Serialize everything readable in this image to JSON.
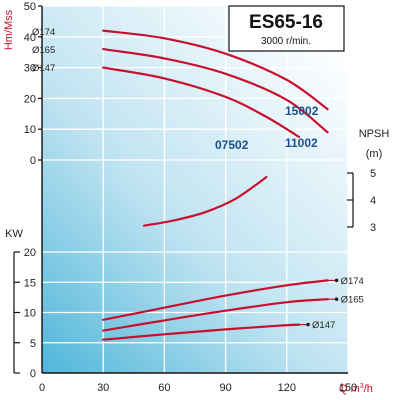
{
  "chart_data": {
    "type": "line",
    "title": "ES65-16",
    "subtitle": "3000 r/min.",
    "x_axis": {
      "label_main": "Q m",
      "label_sup": "3",
      "label_tail": "/h",
      "ticks": [
        "0",
        "30",
        "60",
        "90",
        "120",
        "150"
      ],
      "range": [
        0,
        150
      ]
    },
    "head_panel": {
      "ylabel": "Hm/Mss",
      "ticks": [
        "0",
        "10",
        "20",
        "30",
        "40",
        "50"
      ],
      "range": [
        0,
        50
      ],
      "series": [
        {
          "name": "Ø174",
          "x": [
            30,
            60,
            90,
            120,
            140
          ],
          "y": [
            42,
            39.5,
            34.5,
            26,
            16.5
          ]
        },
        {
          "name": "Ø165",
          "x": [
            30,
            60,
            90,
            120,
            140
          ],
          "y": [
            36,
            33,
            28,
            19.5,
            9
          ]
        },
        {
          "name": "Ø147",
          "x": [
            30,
            60,
            90,
            110,
            126
          ],
          "y": [
            30,
            26.5,
            20.5,
            14,
            7.5
          ]
        }
      ],
      "model_labels": [
        "15002",
        "11002",
        "07502"
      ]
    },
    "npsh_panel": {
      "ylabel_line1": "NPSH",
      "ylabel_line2": "(m)",
      "ticks": [
        "3",
        "4",
        "5"
      ],
      "range": [
        3,
        5
      ],
      "series": [
        {
          "name": "NPSH",
          "x": [
            50,
            65,
            80,
            95,
            110
          ],
          "y": [
            3.05,
            3.25,
            3.55,
            4.05,
            4.85
          ]
        }
      ]
    },
    "power_panel": {
      "ylabel": "KW",
      "ticks": [
        "0",
        "5",
        "10",
        "15",
        "20"
      ],
      "range": [
        0,
        20
      ],
      "series": [
        {
          "name": "Ø174",
          "x": [
            30,
            60,
            90,
            120,
            140
          ],
          "y": [
            8.8,
            10.8,
            12.8,
            14.5,
            15.3
          ]
        },
        {
          "name": "Ø165",
          "x": [
            30,
            60,
            90,
            120,
            140
          ],
          "y": [
            7,
            8.7,
            10.3,
            11.7,
            12.2
          ]
        },
        {
          "name": "Ø147",
          "x": [
            30,
            60,
            90,
            115,
            126
          ],
          "y": [
            5.5,
            6.4,
            7.2,
            7.8,
            8
          ]
        }
      ]
    }
  }
}
